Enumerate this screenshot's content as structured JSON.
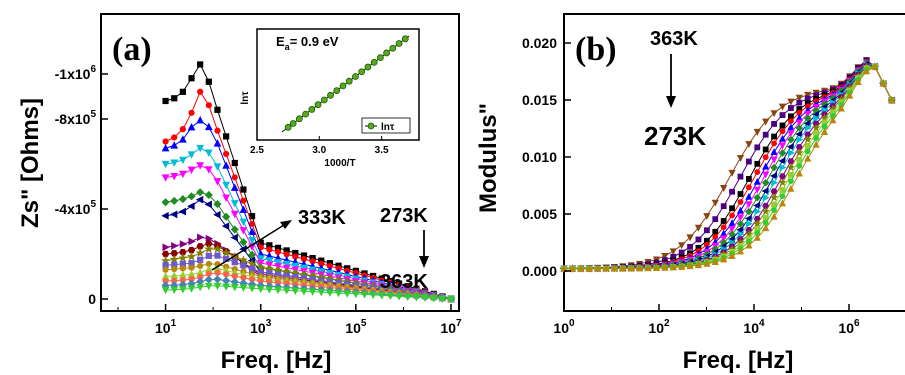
{
  "chart_data": [
    {
      "type": "line",
      "panel_label": "(a)",
      "xlabel": "Freq. [Hz]",
      "ylabel": "Zs\" [Ohms]",
      "xscale": "log",
      "y_inverted": true,
      "xlim": [
        1,
        10000000
      ],
      "ylim": [
        0,
        -1300000
      ],
      "x_ticks": [
        {
          "v": 10,
          "base": "10",
          "exp": "1"
        },
        {
          "v": 1000,
          "base": "10",
          "exp": "3"
        },
        {
          "v": 100000,
          "base": "10",
          "exp": "5"
        },
        {
          "v": 10000000,
          "base": "10",
          "exp": "7"
        }
      ],
      "y_ticks": [
        {
          "v": 0,
          "base": "0",
          "exp": ""
        },
        {
          "v": -400000,
          "base": "-4x10",
          "exp": "5"
        },
        {
          "v": -800000,
          "base": "-8x10",
          "exp": "5"
        },
        {
          "v": -1000000,
          "base": "-1x10",
          "exp": "6"
        }
      ],
      "annotations": {
        "a1": "333K",
        "a2": "273K",
        "a3": "363K"
      },
      "series": [
        {
          "color": "#000000",
          "marker": "square",
          "x": [
            10,
            20,
            40,
            60,
            100,
            1000,
            10000000
          ],
          "y": [
            -880000,
            -900000,
            -1000000,
            -1060000,
            -900000,
            -250000,
            0
          ]
        },
        {
          "color": "#ff0000",
          "marker": "circle",
          "x": [
            10,
            20,
            40,
            60,
            100,
            1000,
            10000000
          ],
          "y": [
            -700000,
            -730000,
            -850000,
            -950000,
            -800000,
            -230000,
            0
          ]
        },
        {
          "color": "#0000ff",
          "marker": "triangle-up",
          "x": [
            10,
            20,
            40,
            60,
            100,
            1000,
            10000000
          ],
          "y": [
            -670000,
            -690000,
            -780000,
            -800000,
            -740000,
            -200000,
            0
          ]
        },
        {
          "color": "#00bcd4",
          "marker": "triangle-down",
          "x": [
            10,
            20,
            40,
            60,
            100,
            1000,
            10000000
          ],
          "y": [
            -600000,
            -610000,
            -650000,
            -680000,
            -630000,
            -180000,
            0
          ]
        },
        {
          "color": "#ff00ff",
          "marker": "triangle-down",
          "x": [
            10,
            20,
            40,
            60,
            100,
            1000,
            10000000
          ],
          "y": [
            -540000,
            -550000,
            -580000,
            -600000,
            -560000,
            -160000,
            0
          ]
        },
        {
          "color": "#228b22",
          "marker": "diamond",
          "x": [
            10,
            20,
            40,
            60,
            100,
            1000,
            10000000
          ],
          "y": [
            -430000,
            -440000,
            -460000,
            -480000,
            -450000,
            -140000,
            0
          ]
        },
        {
          "color": "#000080",
          "marker": "triangle-left",
          "x": [
            10,
            20,
            40,
            60,
            100,
            1000,
            10000000
          ],
          "y": [
            -370000,
            -380000,
            -420000,
            -450000,
            -400000,
            -120000,
            0
          ]
        },
        {
          "color": "#800080",
          "marker": "triangle-right",
          "x": [
            10,
            20,
            40,
            60,
            100,
            1000,
            10000000
          ],
          "y": [
            -230000,
            -240000,
            -260000,
            -280000,
            -260000,
            -100000,
            0
          ]
        },
        {
          "color": "#8b0000",
          "marker": "hexagon",
          "x": [
            10,
            20,
            40,
            60,
            100,
            1000,
            10000000
          ],
          "y": [
            -200000,
            -205000,
            -220000,
            -240000,
            -250000,
            -110000,
            0
          ]
        },
        {
          "color": "#808000",
          "marker": "star",
          "x": [
            10,
            20,
            40,
            60,
            100,
            1000,
            10000000
          ],
          "y": [
            -170000,
            -180000,
            -190000,
            -210000,
            -230000,
            -140000,
            0
          ]
        },
        {
          "color": "#6a5acd",
          "marker": "square",
          "x": [
            10,
            20,
            40,
            60,
            100,
            1000,
            10000000
          ],
          "y": [
            -150000,
            -155000,
            -160000,
            -180000,
            -200000,
            -120000,
            0
          ]
        },
        {
          "color": "#b8860b",
          "marker": "circle",
          "x": [
            10,
            20,
            40,
            60,
            100,
            1000,
            10000000
          ],
          "y": [
            -130000,
            -135000,
            -140000,
            -150000,
            -160000,
            -100000,
            0
          ]
        },
        {
          "color": "#9acd32",
          "marker": "triangle-up",
          "x": [
            10,
            20,
            40,
            60,
            100,
            1000,
            10000000
          ],
          "y": [
            -100000,
            -105000,
            -110000,
            -120000,
            -140000,
            -90000,
            0
          ]
        },
        {
          "color": "#ff6347",
          "marker": "circle",
          "x": [
            10,
            20,
            40,
            60,
            100,
            1000,
            10000000
          ],
          "y": [
            -80000,
            -82000,
            -90000,
            -100000,
            -120000,
            -80000,
            0
          ]
        },
        {
          "color": "#4682b4",
          "marker": "diamond",
          "x": [
            10,
            20,
            40,
            60,
            100,
            1000,
            10000000
          ],
          "y": [
            -60000,
            -62000,
            -70000,
            -80000,
            -90000,
            -60000,
            0
          ]
        },
        {
          "color": "#32cd32",
          "marker": "triangle-down",
          "x": [
            10,
            20,
            40,
            60,
            100,
            1000,
            10000000
          ],
          "y": [
            -40000,
            -42000,
            -48000,
            -55000,
            -60000,
            -45000,
            0
          ]
        }
      ],
      "inset": {
        "title_base": "E",
        "title_sub": "a",
        "title_rest": "= 0.9 eV",
        "xlabel": "1000/T",
        "ylabel": "lnτ",
        "legend": "lnτ",
        "xlim": [
          2.5,
          3.8
        ],
        "x_ticks": [
          "2.5",
          "3.0",
          "3.5"
        ],
        "x": [
          2.75,
          2.79,
          2.84,
          2.89,
          2.94,
          2.99,
          3.04,
          3.09,
          3.14,
          3.19,
          3.24,
          3.29,
          3.34,
          3.39,
          3.44,
          3.49,
          3.54,
          3.59,
          3.64,
          3.69
        ],
        "fit_x": [
          2.7,
          3.72
        ]
      }
    },
    {
      "type": "line",
      "panel_label": "(b)",
      "xlabel": "Freq. [Hz]",
      "ylabel": "Modulus\"",
      "xscale": "log",
      "xlim": [
        1,
        10000000
      ],
      "ylim": [
        -0.0015,
        0.022
      ],
      "x_ticks": [
        {
          "v": 1,
          "base": "10",
          "exp": "0"
        },
        {
          "v": 100,
          "base": "10",
          "exp": "2"
        },
        {
          "v": 10000,
          "base": "10",
          "exp": "4"
        },
        {
          "v": 1000000,
          "base": "10",
          "exp": "6"
        }
      ],
      "y_ticks": [
        "0.000",
        "0.005",
        "0.010",
        "0.015",
        "0.020"
      ],
      "annotations": {
        "b1": "363K",
        "b2": "273K"
      },
      "peak": {
        "x": 3000000,
        "y": 0.0185
      },
      "series_colors": [
        "#8b4513",
        "#4b0082",
        "#000000",
        "#ff0000",
        "#0000ff",
        "#ff00ff",
        "#228b22",
        "#000080",
        "#00bcd4",
        "#800080",
        "#808000",
        "#9acd32",
        "#32cd32",
        "#b8860b"
      ],
      "series_midpoints": [
        3000,
        5000,
        8000,
        10000,
        13000,
        16000,
        20000,
        25000,
        30000,
        38000,
        45000,
        55000,
        65000,
        80000
      ]
    }
  ]
}
